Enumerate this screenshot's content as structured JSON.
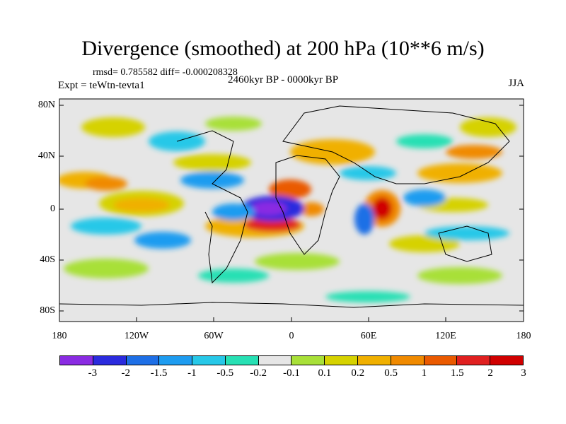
{
  "title": "Divergence (smoothed) at 200 hPa (10**6 m/s)",
  "stats": "rmsd= 0.785582 diff= -0.000208328",
  "experiment": "Expt = teWtn-tevta1",
  "period": "2460kyr BP - 0000kyr BP",
  "season": "JJA",
  "axes": {
    "y_ticks": [
      "80N",
      "40N",
      "0",
      "40S",
      "80S"
    ],
    "x_ticks": [
      "180",
      "120W",
      "60W",
      "0",
      "60E",
      "120E",
      "180"
    ]
  },
  "colorbar": {
    "colors": [
      "#8a2be2",
      "#2b2bde",
      "#1e6fe6",
      "#1e9cf0",
      "#27c8e8",
      "#27e0b4",
      "#e6e6e6",
      "#a8e038",
      "#d6d200",
      "#f0b000",
      "#f08a00",
      "#ea5a00",
      "#e02020",
      "#d00000"
    ],
    "labels": [
      "-3",
      "-2",
      "-1.5",
      "-1",
      "-0.5",
      "-0.2",
      "-0.1",
      "0.1",
      "0.2",
      "0.5",
      "1",
      "1.5",
      "2",
      "3"
    ]
  }
}
